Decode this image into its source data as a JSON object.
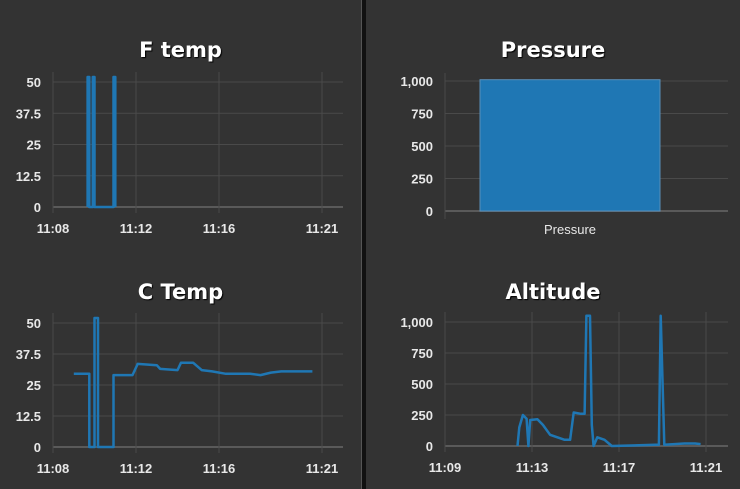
{
  "theme": {
    "background": "#333333",
    "series_color": "#1f77b4",
    "grid_color": "#4a4a4a",
    "text_color": "#e8e8e8"
  },
  "charts": {
    "f_temp": {
      "title": "F temp"
    },
    "pressure": {
      "title": "Pressure"
    },
    "c_temp": {
      "title": "C Temp"
    },
    "altitude": {
      "title": "Altitude"
    }
  },
  "chart_data": [
    {
      "id": "f_temp",
      "type": "line",
      "title": "F temp",
      "xlabel": "",
      "ylabel": "",
      "yticks": [
        "0",
        "12.5",
        "25",
        "37.5",
        "50"
      ],
      "ylim": [
        0,
        50
      ],
      "xticks": [
        "11:08",
        "11:12",
        "11:16",
        "11:21"
      ],
      "grid": true,
      "legend": "none",
      "series": [
        {
          "name": "F temp",
          "points": [
            {
              "x": "11:09:40",
              "y": 0
            },
            {
              "x": "11:09:40",
              "y": 52
            },
            {
              "x": "11:09:45",
              "y": 52
            },
            {
              "x": "11:09:45",
              "y": 0
            },
            {
              "x": "11:09:55",
              "y": 0
            },
            {
              "x": "11:09:55",
              "y": 52
            },
            {
              "x": "11:10:00",
              "y": 52
            },
            {
              "x": "11:10:00",
              "y": 0
            },
            {
              "x": "11:10:55",
              "y": 0
            },
            {
              "x": "11:10:55",
              "y": 52
            },
            {
              "x": "11:11:00",
              "y": 52
            },
            {
              "x": "11:11:00",
              "y": 0
            }
          ]
        }
      ]
    },
    {
      "id": "pressure",
      "type": "bar",
      "title": "Pressure",
      "categories": [
        "Pressure"
      ],
      "values": [
        1010
      ],
      "yticks": [
        "0",
        "250",
        "500",
        "750",
        "1,000"
      ],
      "ylim": [
        0,
        1000
      ],
      "grid": true,
      "legend": "none"
    },
    {
      "id": "c_temp",
      "type": "line",
      "title": "C Temp",
      "xlabel": "",
      "ylabel": "",
      "yticks": [
        "0",
        "12.5",
        "25",
        "37.5",
        "50"
      ],
      "ylim": [
        0,
        50
      ],
      "xticks": [
        "11:08",
        "11:12",
        "11:16",
        "11:21"
      ],
      "grid": true,
      "legend": "none",
      "series": [
        {
          "name": "C Temp",
          "points": [
            {
              "x": "11:09:00",
              "y": 29.5
            },
            {
              "x": "11:09:45",
              "y": 29.5
            },
            {
              "x": "11:09:45",
              "y": 0
            },
            {
              "x": "11:10:00",
              "y": 0
            },
            {
              "x": "11:10:00",
              "y": 52
            },
            {
              "x": "11:10:10",
              "y": 52
            },
            {
              "x": "11:10:10",
              "y": 0
            },
            {
              "x": "11:10:55",
              "y": 0
            },
            {
              "x": "11:10:55",
              "y": 29
            },
            {
              "x": "11:11:50",
              "y": 29
            },
            {
              "x": "11:12:05",
              "y": 33.5
            },
            {
              "x": "11:13:00",
              "y": 33
            },
            {
              "x": "11:13:10",
              "y": 31.5
            },
            {
              "x": "11:14:00",
              "y": 31
            },
            {
              "x": "11:14:10",
              "y": 34
            },
            {
              "x": "11:14:45",
              "y": 34
            },
            {
              "x": "11:15:10",
              "y": 31
            },
            {
              "x": "11:15:40",
              "y": 30.5
            },
            {
              "x": "11:16:20",
              "y": 29.5
            },
            {
              "x": "11:17:30",
              "y": 29.5
            },
            {
              "x": "11:18:00",
              "y": 29
            },
            {
              "x": "11:18:30",
              "y": 30
            },
            {
              "x": "11:19:00",
              "y": 30.5
            },
            {
              "x": "11:20:30",
              "y": 30.5
            }
          ]
        }
      ]
    },
    {
      "id": "altitude",
      "type": "line",
      "title": "Altitude",
      "xlabel": "",
      "ylabel": "",
      "yticks": [
        "0",
        "250",
        "500",
        "750",
        "1,000"
      ],
      "ylim": [
        0,
        1000
      ],
      "xticks": [
        "11:09",
        "11:13",
        "11:17",
        "11:21"
      ],
      "grid": true,
      "legend": "none",
      "series": [
        {
          "name": "Altitude",
          "points": [
            {
              "x": "11:12:20",
              "y": 0
            },
            {
              "x": "11:12:25",
              "y": 150
            },
            {
              "x": "11:12:35",
              "y": 250
            },
            {
              "x": "11:12:45",
              "y": 220
            },
            {
              "x": "11:12:50",
              "y": 0
            },
            {
              "x": "11:12:55",
              "y": 210
            },
            {
              "x": "11:13:15",
              "y": 215
            },
            {
              "x": "11:13:30",
              "y": 170
            },
            {
              "x": "11:13:50",
              "y": 90
            },
            {
              "x": "11:14:30",
              "y": 50
            },
            {
              "x": "11:14:45",
              "y": 50
            },
            {
              "x": "11:14:55",
              "y": 270
            },
            {
              "x": "11:15:15",
              "y": 260
            },
            {
              "x": "11:15:25",
              "y": 260
            },
            {
              "x": "11:15:30",
              "y": 1050
            },
            {
              "x": "11:15:40",
              "y": 1050
            },
            {
              "x": "11:15:45",
              "y": 170
            },
            {
              "x": "11:15:50",
              "y": 0
            },
            {
              "x": "11:16:00",
              "y": 70
            },
            {
              "x": "11:16:20",
              "y": 50
            },
            {
              "x": "11:16:40",
              "y": 0
            },
            {
              "x": "11:18:40",
              "y": 10
            },
            {
              "x": "11:18:50",
              "y": 10
            },
            {
              "x": "11:18:55",
              "y": 1050
            },
            {
              "x": "11:19:05",
              "y": 10
            },
            {
              "x": "11:20:00",
              "y": 20
            },
            {
              "x": "11:20:30",
              "y": 20
            },
            {
              "x": "11:20:45",
              "y": 15
            }
          ]
        }
      ]
    }
  ]
}
